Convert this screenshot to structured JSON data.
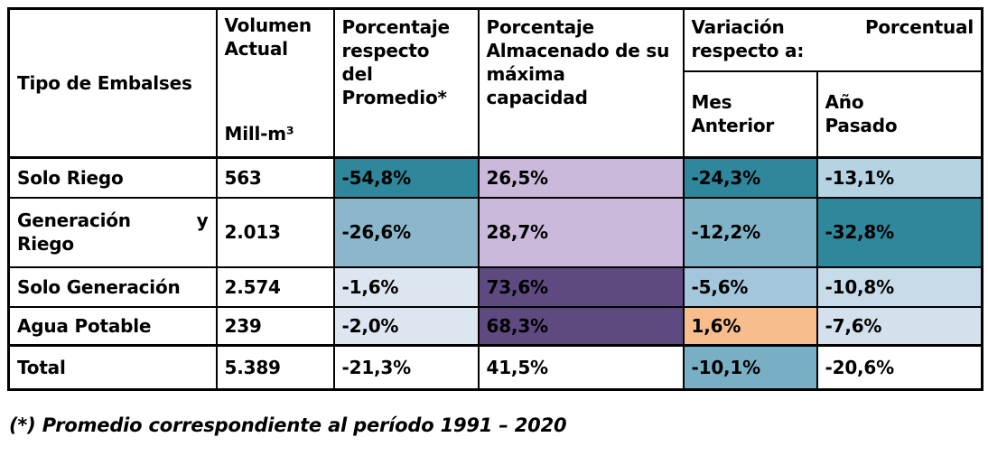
{
  "table": {
    "columns": {
      "tipo": "Tipo de Embalses",
      "volumen": "Volumen\nActual",
      "volumen_unit": "Mill-m³",
      "promedio": "Porcentaje\nrespecto\ndel\nPromedio*",
      "almacenado": "Porcentaje\nAlmacenado de su\nmáxima\ncapacidad",
      "variacion_line1_left": "Variación",
      "variacion_line1_right": "Porcentual",
      "variacion_line2": "respecto a:",
      "mes_anterior": "Mes\nAnterior",
      "ano_pasado": "Año\nPasado"
    },
    "value_colors": {
      "teal": "#2e879b",
      "medium_blue": "#8ab7cb",
      "pale_blue": "#dce6f0",
      "light_purple": "#cbb9dc",
      "dark_purple": "#5e4a80",
      "orange": "#f7bd8c"
    },
    "rows": [
      {
        "label": "Solo Riego",
        "label_right": "",
        "label2": "",
        "volumen": "563",
        "cells": [
          {
            "text": "-54,8%",
            "bg": "#2e879b"
          },
          {
            "text": "26,5%",
            "bg": "#cbb9dc"
          },
          {
            "text": "-24,3%",
            "bg": "#2e879b"
          },
          {
            "text": "-13,1%",
            "bg": "#b5d3e3"
          }
        ]
      },
      {
        "label": "Generación",
        "label_right": "y",
        "label2": "Riego",
        "volumen": "2.013",
        "cells": [
          {
            "text": "-26,6%",
            "bg": "#8ab7cb"
          },
          {
            "text": "28,7%",
            "bg": "#cbb9dc"
          },
          {
            "text": "-12,2%",
            "bg": "#80b2c8"
          },
          {
            "text": "-32,8%",
            "bg": "#2e879b"
          }
        ]
      },
      {
        "label": "Solo Generación",
        "label_right": "",
        "label2": "",
        "volumen": "2.574",
        "cells": [
          {
            "text": "-1,6%",
            "bg": "#dce6f0"
          },
          {
            "text": "73,6%",
            "bg": "#5e4a80"
          },
          {
            "text": "-5,6%",
            "bg": "#a3c6da"
          },
          {
            "text": "-10,8%",
            "bg": "#c8dbe9"
          }
        ]
      },
      {
        "label": "Agua Potable",
        "label_right": "",
        "label2": "",
        "volumen": "239",
        "cells": [
          {
            "text": "-2,0%",
            "bg": "#dce6f0"
          },
          {
            "text": "68,3%",
            "bg": "#5e4a80"
          },
          {
            "text": "1,6%",
            "bg": "#f7bd8c"
          },
          {
            "text": "-7,6%",
            "bg": "#d4e1ed"
          }
        ]
      },
      {
        "label": "Total",
        "label_right": "",
        "label2": "",
        "total": true,
        "volumen": "5.389",
        "cells": [
          {
            "text": "-21,3%",
            "bg": "#ffffff"
          },
          {
            "text": "41,5%",
            "bg": "#ffffff"
          },
          {
            "text": "-10,1%",
            "bg": "#79afc4"
          },
          {
            "text": "-20,6%",
            "bg": "#ffffff"
          }
        ]
      }
    ]
  },
  "footnote": "(*) Promedio correspondiente al período 1991 – 2020"
}
